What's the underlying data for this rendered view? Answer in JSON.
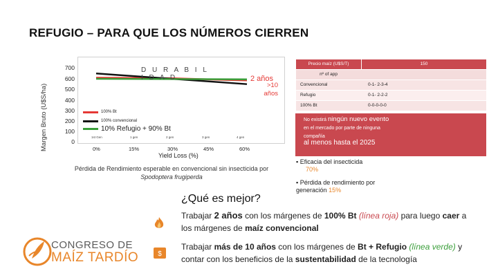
{
  "slide": {
    "title": "REFUGIO – PARA QUE LOS NÚMEROS CIERREN"
  },
  "chart": {
    "ylabel": "Margen Bruto (U$S/ha)",
    "yticks": [
      "700",
      "600",
      "500",
      "400",
      "300",
      "200",
      "100",
      "0"
    ],
    "overlay_title": "D U R A B I L I D A D",
    "annotation_2": "2 años",
    "annotation_10": ">10 años",
    "legend": [
      "100% Bt",
      "100% convencional",
      "10% Refugio + 90% Bt"
    ],
    "generation_labels": [
      "1st Gen",
      "1 gen",
      "2 gen",
      "3 gen",
      "4 gen"
    ],
    "xticks": [
      "0%",
      "15%",
      "30%",
      "45%",
      "60%"
    ],
    "xlabel": "Yield Loss (%)",
    "caption_main": "Pérdida de Rendimiento esperable en convencional sin insecticida por ",
    "caption_species": "Spodoptera frugiperda"
  },
  "chart_data": {
    "type": "line",
    "title": "",
    "xlabel": "Yield Loss (%)",
    "ylabel": "Margen Bruto (U$S/ha)",
    "ylim": [
      0,
      700
    ],
    "x_categories": [
      "0%",
      "15%",
      "30%",
      "45%",
      "60%"
    ],
    "series": [
      {
        "name": "100% Bt",
        "color": "#e53935",
        "points": [
          [
            0,
            600
          ],
          [
            0.5,
            595
          ],
          [
            0.85,
            580
          ],
          [
            1.0,
            575
          ]
        ]
      },
      {
        "name": "100% convencional",
        "color": "#111111",
        "points": [
          [
            0,
            640
          ],
          [
            1.0,
            540
          ]
        ]
      },
      {
        "name": "10% Refugio + 90% Bt",
        "color": "#3a9e3a",
        "points": [
          [
            0,
            590
          ],
          [
            1.0,
            585
          ]
        ]
      }
    ]
  },
  "table": {
    "header_left": "Precio maíz (U$S/T)",
    "header_right": "150",
    "subheader": "nº of app",
    "rows": [
      {
        "label": "Convencional",
        "value": "0-1- 2-3-4"
      },
      {
        "label": "Refugio",
        "value": "0-1- 2-2-2"
      },
      {
        "label": "100% Bt",
        "value": "0-0-0-0-0"
      }
    ]
  },
  "redbox": {
    "line1_small": "No existirá ",
    "line1_big": "ningún nuevo evento",
    "line1_rest": " en el mercado por parte de ninguna compañía",
    "line2": "al menos hasta el 2025"
  },
  "bullets": [
    {
      "text": "Eficacia del insecticida",
      "value": "70%"
    },
    {
      "text": "Pérdida de rendimiento por generación",
      "value": "15%"
    }
  ],
  "question": "¿Qué es mejor?",
  "option1": {
    "t1": "Trabajar ",
    "b1": "2 años",
    "t2": " con los márgenes de ",
    "b2": "100% Bt",
    "t3": " ",
    "i1": "(línea roja)",
    "t4": " para luego ",
    "b3": "caer",
    "t5": " a los márgenes de ",
    "b4": "maíz convencional"
  },
  "option2": {
    "t1": "Trabajar ",
    "b1": "más de 10 años",
    "t2": " con los márgenes de ",
    "b2": "Bt + Refugio",
    "i1": "(línea verde)",
    "t3": " y contar con los beneficios de la ",
    "b3": "sustentabilidad",
    "t4": " de la tecnología"
  },
  "logo": {
    "line1": "CONGRESO DE",
    "line2": "MAÍZ TARDÍO"
  },
  "colors": {
    "accent_red": "#c9484f",
    "line_red": "#e53935",
    "line_green": "#3a9e3a",
    "logo_orange": "#e8862a"
  }
}
